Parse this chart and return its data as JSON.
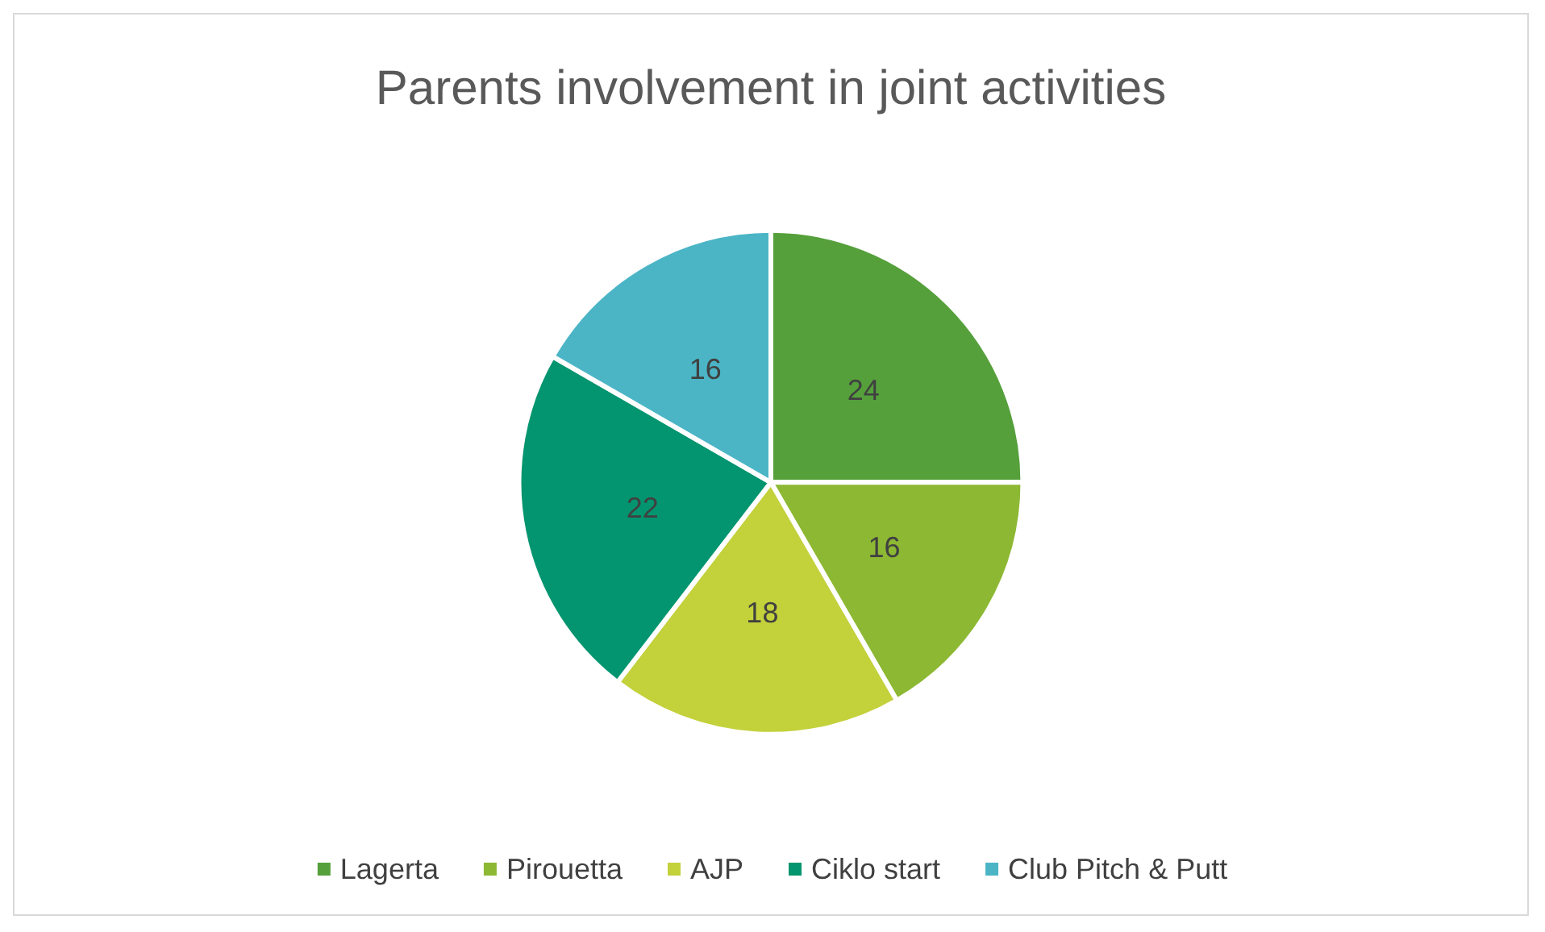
{
  "chart_data": {
    "type": "pie",
    "title": "Parents involvement in joint activities",
    "categories": [
      "Lagerta",
      "Pirouetta",
      "AJP",
      "Ciklo start",
      "Club Pitch & Putt"
    ],
    "values": [
      24,
      16,
      18,
      22,
      16
    ],
    "colors": [
      "#55a03b",
      "#8db833",
      "#c3d13b",
      "#03956f",
      "#4bb5c6"
    ],
    "data_labels": true,
    "legend": "bottom"
  }
}
